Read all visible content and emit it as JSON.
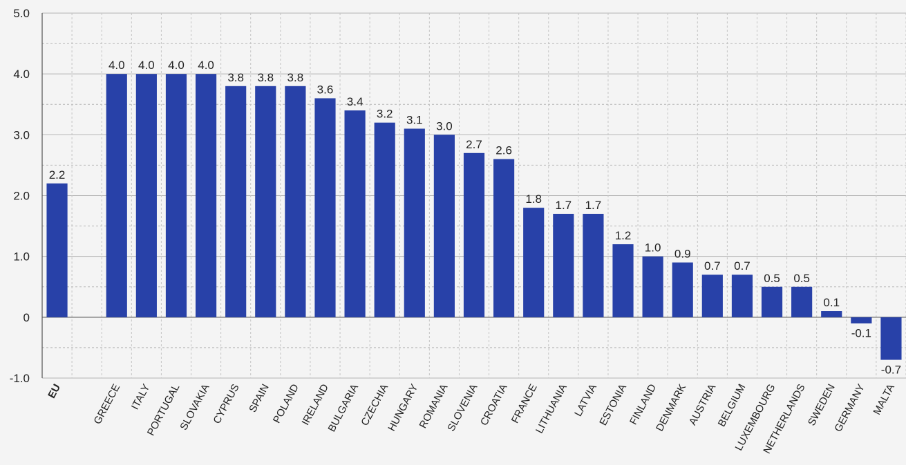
{
  "chart_data": {
    "type": "bar",
    "title": "",
    "xlabel": "",
    "ylabel": "",
    "ylim": [
      -1.0,
      5.0
    ],
    "yticks": [
      -1.0,
      0,
      1.0,
      2.0,
      3.0,
      4.0,
      5.0
    ],
    "ytick_labels": [
      "-1.0",
      "0",
      "1.0",
      "2.0",
      "3.0",
      "4.0",
      "5.0"
    ],
    "grid": true,
    "bar_color": "#2841a8",
    "categories": [
      "EU",
      "",
      "GREECE",
      "ITALY",
      "PORTUGAL",
      "SLOVAKIA",
      "CYPRUS",
      "SPAIN",
      "POLAND",
      "IRELAND",
      "BULGARIA",
      "CZECHIA",
      "HUNGARY",
      "ROMANIA",
      "SLOVENIA",
      "CROATIA",
      "FRANCE",
      "LITHUANIA",
      "LATVIA",
      "ESTONIA",
      "FINLAND",
      "DENMARK",
      "AUSTRIA",
      "BELGIUM",
      "LUXEMBOURG",
      "NETHERLANDS",
      "SWEDEN",
      "GERMANY",
      "MALTA"
    ],
    "values": [
      2.2,
      null,
      4.0,
      4.0,
      4.0,
      4.0,
      3.8,
      3.8,
      3.8,
      3.6,
      3.4,
      3.2,
      3.1,
      3.0,
      2.7,
      2.6,
      1.8,
      1.7,
      1.7,
      1.2,
      1.0,
      0.9,
      0.7,
      0.7,
      0.5,
      0.5,
      0.1,
      -0.1,
      -0.7
    ],
    "labels": [
      "2.2",
      "",
      "4.0",
      "4.0",
      "4.0",
      "4.0",
      "3.8",
      "3.8",
      "3.8",
      "3.6",
      "3.4",
      "3.2",
      "3.1",
      "3.0",
      "2.7",
      "2.6",
      "1.8",
      "1.7",
      "1.7",
      "1.2",
      "1.0",
      "0.9",
      "0.7",
      "0.7",
      "0.5",
      "0.5",
      "0.1",
      "-0.1",
      "-0.7"
    ],
    "bold_categories": [
      "EU"
    ]
  }
}
